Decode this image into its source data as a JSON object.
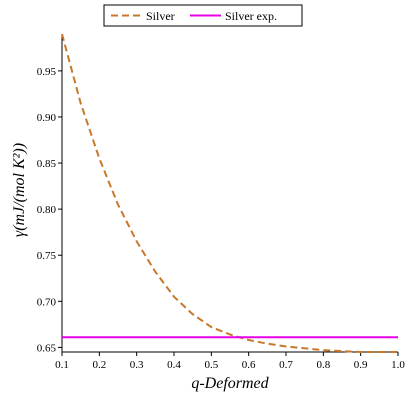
{
  "chart_data": {
    "type": "line",
    "xlabel": "q-Deformed",
    "ylabel": "γ(mJ/(mol K²))",
    "xlim": [
      0.1,
      1.0
    ],
    "ylim": [
      0.645,
      0.99
    ],
    "xticks": [
      "0.1",
      "0.2",
      "0.3",
      "0.4",
      "0.5",
      "0.6",
      "0.7",
      "0.8",
      "0.9",
      "1.0"
    ],
    "yticks": [
      "0.65",
      "0.70",
      "0.75",
      "0.80",
      "0.85",
      "0.90",
      "0.95"
    ],
    "grid": false,
    "legend_position": "top-center",
    "series": [
      {
        "name": "Silver",
        "style": "dashed",
        "color": "#c8782a",
        "x": [
          0.1,
          0.15,
          0.2,
          0.25,
          0.3,
          0.35,
          0.4,
          0.45,
          0.5,
          0.55,
          0.6,
          0.65,
          0.7,
          0.75,
          0.8,
          0.85,
          0.9,
          0.95,
          1.0
        ],
        "y": [
          0.99,
          0.915,
          0.855,
          0.805,
          0.765,
          0.732,
          0.705,
          0.686,
          0.672,
          0.664,
          0.658,
          0.654,
          0.651,
          0.649,
          0.647,
          0.646,
          0.645,
          0.645,
          0.645
        ]
      },
      {
        "name": "Silver exp.",
        "style": "solid",
        "color": "#e600e6",
        "x": [
          0.1,
          1.0
        ],
        "y": [
          0.661,
          0.661
        ]
      }
    ]
  }
}
